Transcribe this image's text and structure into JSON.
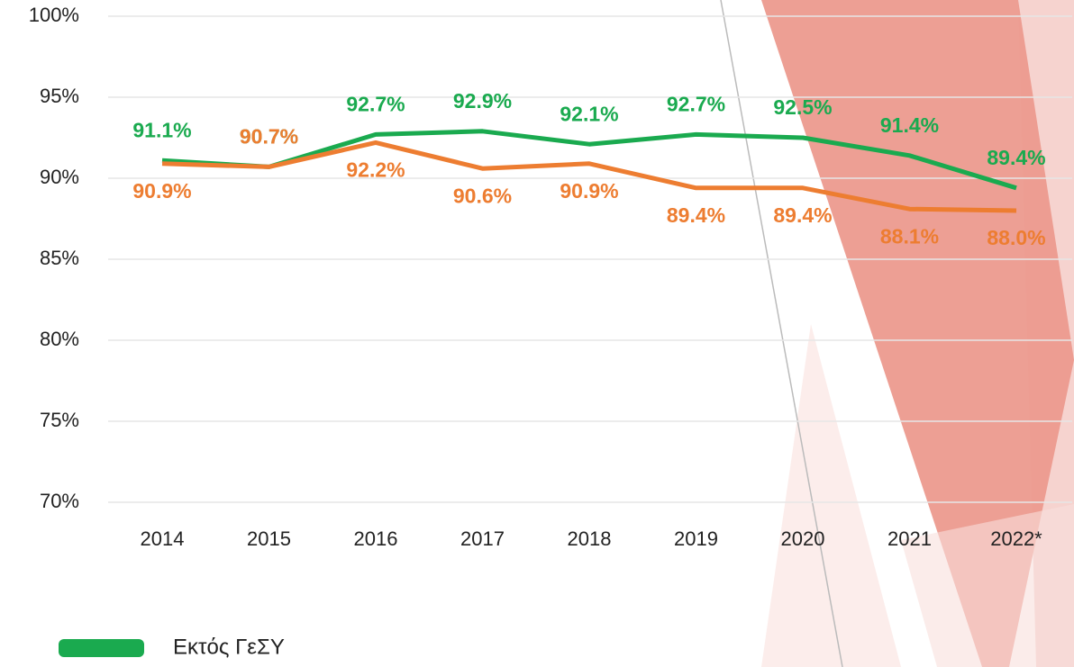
{
  "chart_data": {
    "type": "line",
    "categories": [
      "2014",
      "2015",
      "2016",
      "2017",
      "2018",
      "2019",
      "2020",
      "2021",
      "2022*"
    ],
    "series": [
      {
        "name": "Εκτός ΓεΣΥ",
        "color": "#1aaa4f",
        "values": [
          91.1,
          90.7,
          92.7,
          92.9,
          92.1,
          92.7,
          92.5,
          91.4,
          89.4
        ],
        "value_labels": [
          "91.1%",
          "90.7%",
          "92.7%",
          "92.9%",
          "92.1%",
          "92.7%",
          "92.5%",
          "91.4%",
          "89.4%"
        ]
      },
      {
        "color": "#ed7d31",
        "values": [
          90.9,
          90.7,
          92.2,
          90.6,
          90.9,
          89.4,
          89.4,
          88.1,
          88.0
        ],
        "value_labels": [
          "90.9%",
          "90.7%",
          "92.2%",
          "90.6%",
          "90.9%",
          "89.4%",
          "89.4%",
          "88.1%",
          "88.0%"
        ]
      }
    ],
    "ylim": [
      70,
      100
    ],
    "yticks": [
      {
        "value": 70,
        "label": "70%"
      },
      {
        "value": 75,
        "label": "75%"
      },
      {
        "value": 80,
        "label": "80%"
      },
      {
        "value": 85,
        "label": "85%"
      },
      {
        "value": 90,
        "label": "90%"
      },
      {
        "value": 95,
        "label": "95%"
      },
      {
        "value": 100,
        "label": "100%"
      }
    ],
    "grid": true
  }
}
